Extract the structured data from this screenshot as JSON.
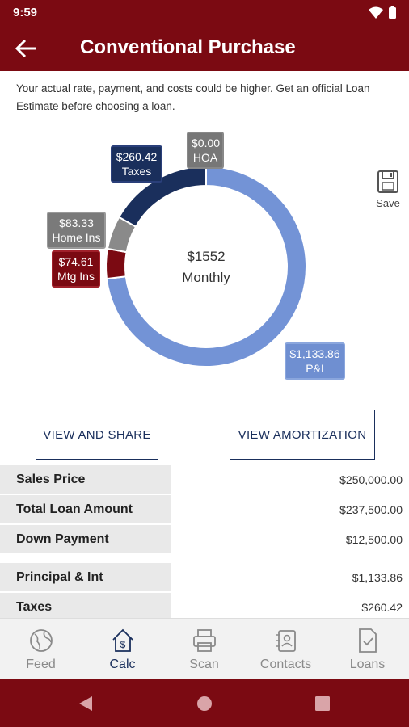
{
  "status": {
    "time": "9:59"
  },
  "header": {
    "title": "Conventional Purchase"
  },
  "disclaimer": "Your actual rate, payment, and costs could be higher. Get an official Loan Estimate before choosing a loan.",
  "chart_data": {
    "type": "pie",
    "center_amount": "$1552",
    "center_label": "Monthly",
    "slices": [
      {
        "name": "P&I",
        "value": 1133.86,
        "label": "$1,133.86",
        "color": "#7393d6"
      },
      {
        "name": "Mtg Ins",
        "value": 74.61,
        "label": "$74.61",
        "color": "#7b0a12"
      },
      {
        "name": "Home Ins",
        "value": 83.33,
        "label": "$83.33",
        "color": "#8a8a8a"
      },
      {
        "name": "Taxes",
        "value": 260.42,
        "label": "$260.42",
        "color": "#1a2f5c"
      },
      {
        "name": "HOA",
        "value": 0.0,
        "label": "$0.00",
        "color": "#777777"
      }
    ]
  },
  "tags": {
    "taxes": {
      "amount": "$260.42",
      "name": "Taxes"
    },
    "hoa": {
      "amount": "$0.00",
      "name": "HOA"
    },
    "homeins": {
      "amount": "$83.33",
      "name": "Home Ins"
    },
    "mtgins": {
      "amount": "$74.61",
      "name": "Mtg Ins"
    },
    "pi": {
      "amount": "$1,133.86",
      "name": "P&I"
    }
  },
  "save": {
    "label": "Save"
  },
  "buttons": {
    "share": "VIEW AND SHARE",
    "amortization": "VIEW AMORTIZATION"
  },
  "table": {
    "rows": [
      {
        "label": "Sales Price",
        "value": "$250,000.00"
      },
      {
        "label": "Total Loan Amount",
        "value": "$237,500.00"
      },
      {
        "label": "Down Payment",
        "value": "$12,500.00"
      },
      {
        "label": "Principal & Int",
        "value": "$1,133.86"
      },
      {
        "label": "Taxes",
        "value": "$260.42"
      }
    ]
  },
  "nav": {
    "items": [
      {
        "label": "Feed",
        "icon": "globe-icon"
      },
      {
        "label": "Calc",
        "icon": "calculator-house-icon"
      },
      {
        "label": "Scan",
        "icon": "printer-icon"
      },
      {
        "label": "Contacts",
        "icon": "contacts-icon"
      },
      {
        "label": "Loans",
        "icon": "document-check-icon"
      }
    ]
  }
}
